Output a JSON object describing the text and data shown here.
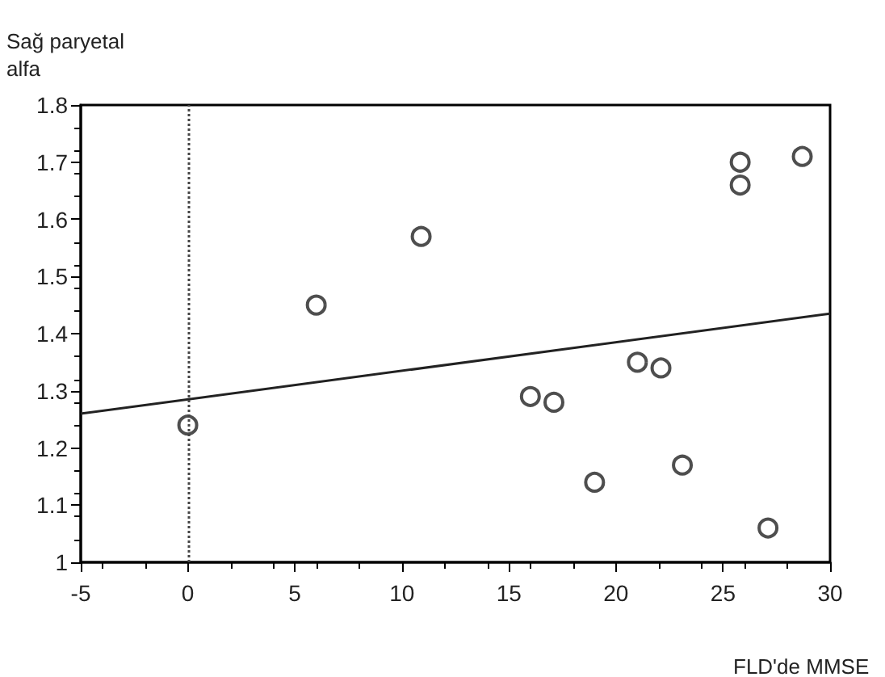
{
  "chart_data": {
    "type": "scatter",
    "xlabel": "FLD'de MMSE",
    "ylabel": "Sağ paryetal\nalfa",
    "xlim": [
      -5,
      30
    ],
    "xticks": [
      -5,
      0,
      5,
      10,
      15,
      20,
      25,
      30
    ],
    "ylim": [
      1,
      1.8
    ],
    "yticks": [
      1,
      1.1,
      1.2,
      1.3,
      1.4,
      1.5,
      1.6,
      1.7,
      1.8
    ],
    "grid": false,
    "marker": "circle",
    "series": [
      {
        "color": "#222222",
        "x": [
          0,
          6,
          10.9,
          16,
          17.1,
          19,
          21,
          22.1,
          23.1,
          25.8,
          25.8,
          27.1,
          28.7
        ],
        "values": [
          1.24,
          1.45,
          1.57,
          1.29,
          1.28,
          1.14,
          1.35,
          1.34,
          1.17,
          1.7,
          1.66,
          1.06,
          1.71
        ]
      },
      {
        "type": "line",
        "color": "#222222",
        "x": [
          -5,
          30
        ],
        "values": [
          1.26,
          1.435
        ],
        "marker": "none",
        "line_style": "solid"
      }
    ],
    "ref_lines": [
      {
        "axis": "x",
        "value": 0,
        "label": null,
        "line_style": "dotted",
        "color": "#444444"
      }
    ]
  }
}
